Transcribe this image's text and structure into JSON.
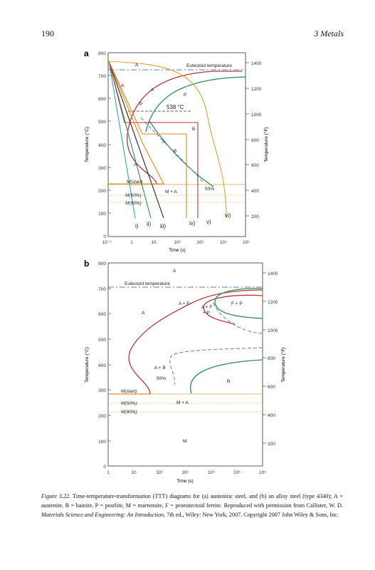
{
  "page": {
    "number": "190",
    "running_head": "3  Metals"
  },
  "panels": [
    {
      "label": "a",
      "y_ticks_c": [
        "800",
        "700",
        "600",
        "500",
        "400",
        "300",
        "200",
        "100",
        "0"
      ],
      "y_ticks_f": [
        "1400",
        "1200",
        "1000",
        "800",
        "600",
        "400",
        "200"
      ],
      "x_ticks": [
        "10⁻¹",
        "1",
        "10",
        "10²",
        "10³",
        "10⁴",
        "10⁵"
      ],
      "ylabel_left": "Temperature (°C)",
      "ylabel_right": "Temperature (°F)",
      "xlabel": "Time (s)",
      "annotations": [
        "A",
        "Eutectoid temperature",
        "A",
        "A",
        "P",
        "P",
        "538 °C",
        "B",
        "A",
        "B",
        "A",
        "M(start)",
        "M + A",
        "50%",
        "M(50%)",
        "M(90%)"
      ],
      "curve_labels": [
        "i)",
        "ii)",
        "iii)",
        "iv)",
        "v)",
        "vi)"
      ]
    },
    {
      "label": "b",
      "y_ticks_c": [
        "800",
        "700",
        "600",
        "500",
        "400",
        "300",
        "200",
        "100",
        "0"
      ],
      "y_ticks_f": [
        "1400",
        "1200",
        "1000",
        "800",
        "600",
        "400",
        "200"
      ],
      "x_ticks": [
        "1",
        "10",
        "10²",
        "10³",
        "10⁴",
        "10⁵",
        "10⁶"
      ],
      "ylabel_left": "Temperature (°C)",
      "ylabel_right": "Temperature (°F)",
      "xlabel": "Time (s)",
      "annotations": [
        "A",
        "Eutectoid temperature",
        "A",
        "A + F",
        "A + F",
        "+ P",
        "F + P",
        "A + B",
        "50%",
        "B",
        "M(start)",
        "M + A",
        "M(50%)",
        "M(90%)",
        "M"
      ]
    }
  ],
  "caption": {
    "label": "Figure 3.22.",
    "text_1": " Time-temperature-transformation (TTT) diagrams for (a) austenitic steel, and (b) an alloy steel (type 4340); A = austenite, B = bainite, P = pearlite, M = martensite, F = proeutectoid ferrite. Reproduced with permission from Callister, W. D. ",
    "book": "Materials Science and Engineering: An Introduction",
    "text_2": ", 7th ed., Wiley: New York, 2007. Copyright 2007 John Wiley & Sons, Inc."
  },
  "colors": {
    "red": "#b03a3a",
    "green": "#2e8a5c",
    "orange": "#e08a1e",
    "blue": "#5a7fb8",
    "gold": "#d4a53a",
    "cyan": "#2ba6c4",
    "dark": "#222222"
  }
}
